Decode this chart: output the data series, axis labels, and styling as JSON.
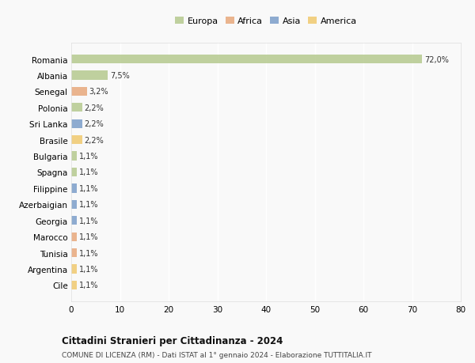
{
  "countries": [
    "Romania",
    "Albania",
    "Senegal",
    "Polonia",
    "Sri Lanka",
    "Brasile",
    "Bulgaria",
    "Spagna",
    "Filippine",
    "Azerbaigian",
    "Georgia",
    "Marocco",
    "Tunisia",
    "Argentina",
    "Cile"
  ],
  "values": [
    72.0,
    7.5,
    3.2,
    2.2,
    2.2,
    2.2,
    1.1,
    1.1,
    1.1,
    1.1,
    1.1,
    1.1,
    1.1,
    1.1,
    1.1
  ],
  "labels": [
    "72,0%",
    "7,5%",
    "3,2%",
    "2,2%",
    "2,2%",
    "2,2%",
    "1,1%",
    "1,1%",
    "1,1%",
    "1,1%",
    "1,1%",
    "1,1%",
    "1,1%",
    "1,1%",
    "1,1%"
  ],
  "colors": [
    "#b5c98e",
    "#b5c98e",
    "#e8a87c",
    "#b5c98e",
    "#7b9ec9",
    "#f0c96e",
    "#b5c98e",
    "#b5c98e",
    "#7b9ec9",
    "#7b9ec9",
    "#7b9ec9",
    "#e8a87c",
    "#e8a87c",
    "#f0c96e",
    "#f0c96e"
  ],
  "legend_labels": [
    "Europa",
    "Africa",
    "Asia",
    "America"
  ],
  "legend_colors": [
    "#b5c98e",
    "#e8a87c",
    "#7b9ec9",
    "#f0c96e"
  ],
  "xlim": [
    0,
    80
  ],
  "xticks": [
    0,
    10,
    20,
    30,
    40,
    50,
    60,
    70,
    80
  ],
  "title": "Cittadini Stranieri per Cittadinanza - 2024",
  "subtitle": "COMUNE DI LICENZA (RM) - Dati ISTAT al 1° gennaio 2024 - Elaborazione TUTTITALIA.IT",
  "bg_color": "#f9f9f9",
  "grid_color": "#ffffff",
  "bar_height": 0.55,
  "label_fontsize": 7,
  "ytick_fontsize": 7.5,
  "xtick_fontsize": 7.5,
  "legend_fontsize": 8,
  "title_fontsize": 8.5,
  "subtitle_fontsize": 6.5
}
